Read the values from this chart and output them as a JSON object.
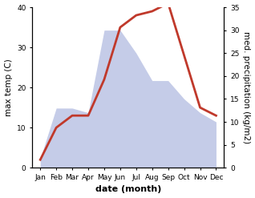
{
  "months": [
    "Jan",
    "Feb",
    "Mar",
    "Apr",
    "May",
    "Jun",
    "Jul",
    "Aug",
    "Sep",
    "Oct",
    "Nov",
    "Dec"
  ],
  "month_indices": [
    1,
    2,
    3,
    4,
    5,
    6,
    7,
    8,
    9,
    10,
    11,
    12
  ],
  "temperature": [
    2,
    10,
    13,
    13,
    22,
    35,
    38,
    39,
    41,
    28,
    15,
    13
  ],
  "precipitation": [
    2,
    13,
    13,
    12,
    30,
    30,
    25,
    19,
    19,
    15,
    12,
    10
  ],
  "temp_color": "#c0392b",
  "precip_fill_color": "#c5cce8",
  "temp_ylim": [
    0,
    40
  ],
  "precip_ylim": [
    0,
    35
  ],
  "temp_yticks": [
    0,
    10,
    20,
    30,
    40
  ],
  "precip_yticks": [
    0,
    5,
    10,
    15,
    20,
    25,
    30,
    35
  ],
  "xlabel": "date (month)",
  "ylabel_left": "max temp (C)",
  "ylabel_right": "med. precipitation (kg/m2)",
  "line_width": 2.0,
  "xlabel_fontsize": 8,
  "ylabel_fontsize": 7.5,
  "tick_fontsize": 6.5,
  "xlim_left": 0.5,
  "xlim_right": 12.5
}
